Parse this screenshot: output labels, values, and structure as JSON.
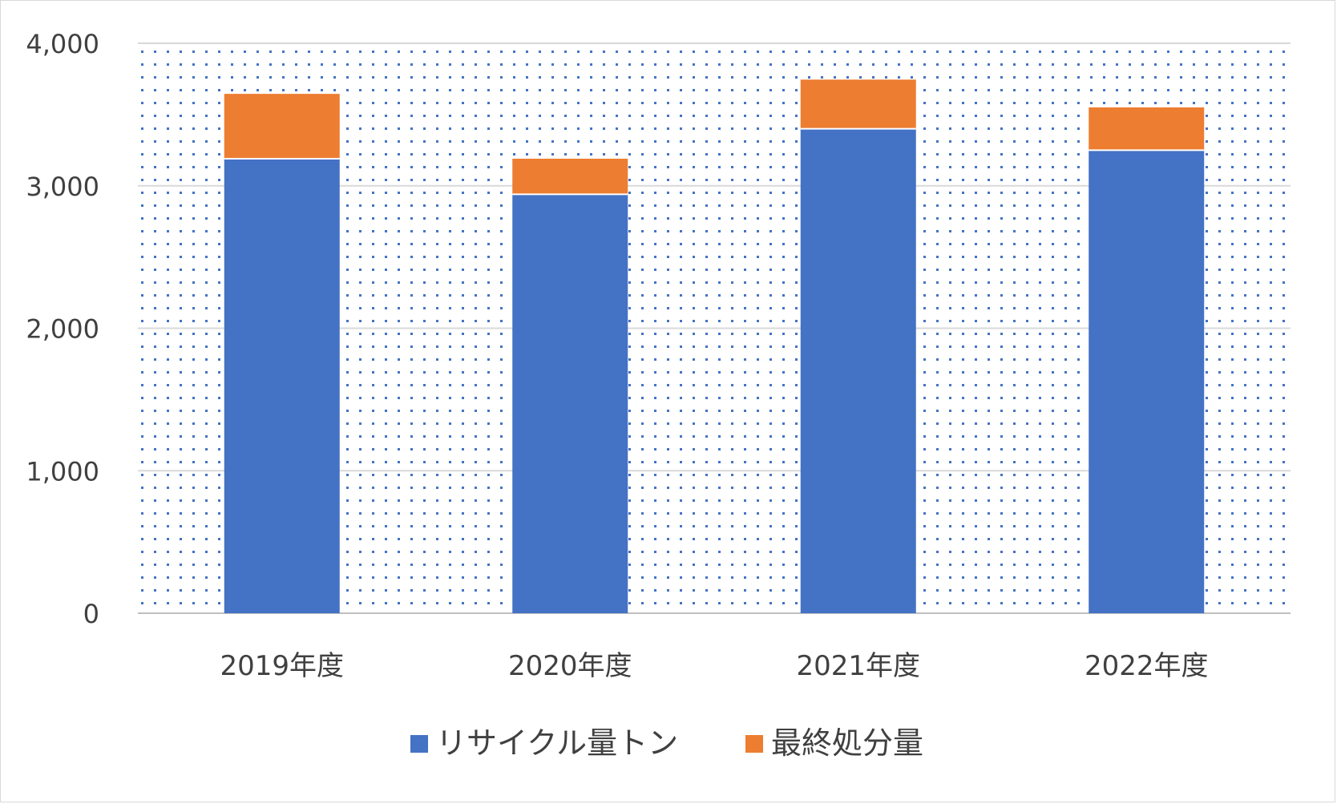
{
  "chart_data": {
    "type": "bar",
    "stacked": true,
    "categories": [
      "2019年度",
      "2020年度",
      "2021年度",
      "2022年度"
    ],
    "series": [
      {
        "name": "リサイクル量トン",
        "color": "#4472C4",
        "values": [
          3190,
          2940,
          3400,
          3250
        ]
      },
      {
        "name": "最終処分量",
        "color": "#ED7D31",
        "values": [
          455,
          250,
          345,
          300
        ]
      }
    ],
    "yticks": [
      "0",
      "1,000",
      "2,000",
      "3,000",
      "4,000"
    ],
    "ylim": [
      0,
      4000
    ],
    "grid": true,
    "plot_background": "dotted-blue",
    "legend_position": "bottom"
  }
}
